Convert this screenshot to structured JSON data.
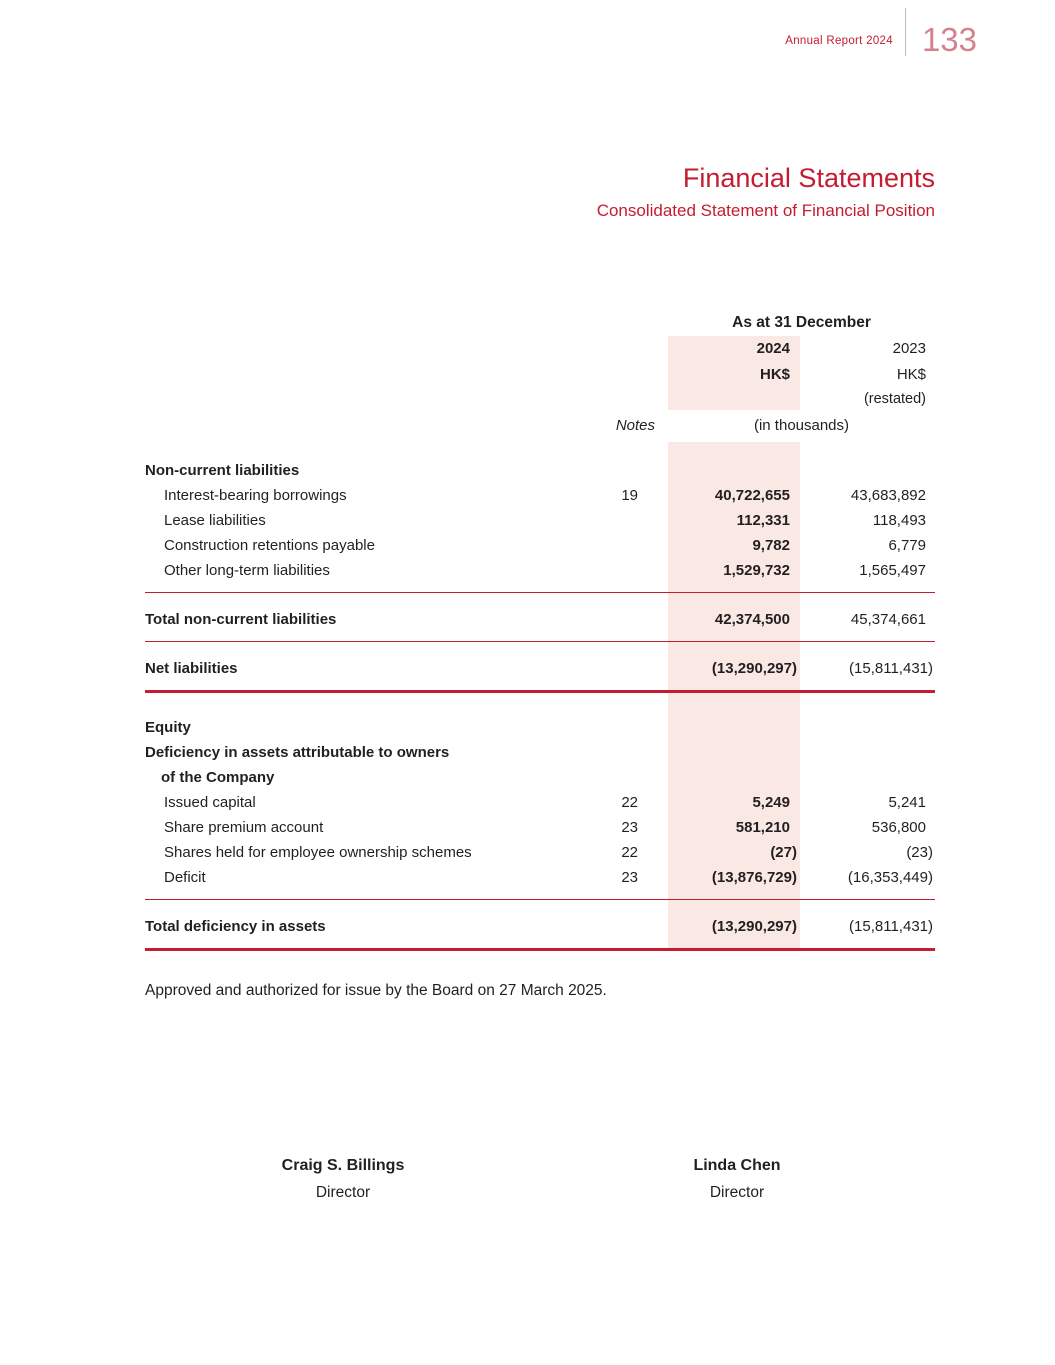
{
  "colors": {
    "accent_red": "#c41c30",
    "page_number_red": "#d4818e",
    "column_shade_pink": "#f9e8e4",
    "text_ink": "#231f20"
  },
  "header": {
    "report_label": "Annual Report 2024",
    "page_number": "133"
  },
  "title": {
    "main": "Financial Statements",
    "subtitle": "Consolidated Statement of Financial Position"
  },
  "table": {
    "period_header": "As at 31 December",
    "columns": {
      "year_2024": "2024",
      "year_2023": "2023",
      "currency_2024": "HK$",
      "currency_2023": "HK$",
      "restated_note": "(restated)",
      "notes_label": "Notes",
      "units_label": "(in thousands)"
    },
    "rows": [
      {
        "type": "heading",
        "label": "Non-current liabilities",
        "note": "",
        "v2024": "",
        "v2023": ""
      },
      {
        "type": "item",
        "label": "Interest-bearing borrowings",
        "note": "19",
        "v2024": "40,722,655",
        "v2023": "43,683,892"
      },
      {
        "type": "item",
        "label": "Lease liabilities",
        "note": "",
        "v2024": "112,331",
        "v2023": "118,493"
      },
      {
        "type": "item",
        "label": "Construction retentions payable",
        "note": "",
        "v2024": "9,782",
        "v2023": "6,779"
      },
      {
        "type": "item",
        "label": "Other long-term liabilities",
        "note": "",
        "v2024": "1,529,732",
        "v2023": "1,565,497"
      },
      {
        "type": "total",
        "label": "Total non-current liabilities",
        "note": "",
        "v2024": "42,374,500",
        "v2023": "45,374,661"
      },
      {
        "type": "total",
        "label": "Net liabilities",
        "note": "",
        "v2024": "(13,290,297)",
        "v2023": "(15,811,431)"
      },
      {
        "type": "heading",
        "label": "Equity",
        "note": "",
        "v2024": "",
        "v2023": ""
      },
      {
        "type": "heading",
        "label": "Deficiency in assets attributable to owners",
        "note": "",
        "v2024": "",
        "v2023": ""
      },
      {
        "type": "heading",
        "label": "of the Company",
        "note": "",
        "v2024": "",
        "v2023": ""
      },
      {
        "type": "item",
        "label": "Issued capital",
        "note": "22",
        "v2024": "5,249",
        "v2023": "5,241"
      },
      {
        "type": "item",
        "label": "Share premium account",
        "note": "23",
        "v2024": "581,210",
        "v2023": "536,800"
      },
      {
        "type": "item",
        "label": "Shares held for employee ownership schemes",
        "note": "22",
        "v2024": "(27)",
        "v2023": "(23)"
      },
      {
        "type": "item",
        "label": "Deficit",
        "note": "23",
        "v2024": "(13,876,729)",
        "v2023": "(16,353,449)"
      },
      {
        "type": "total",
        "label": "Total deficiency in assets",
        "note": "",
        "v2024": "(13,290,297)",
        "v2023": "(15,811,431)"
      }
    ]
  },
  "approval": {
    "text": "Approved and authorized for issue by the Board on 27 March 2025."
  },
  "signatures": [
    {
      "name": "Craig S. Billings",
      "title": "Director"
    },
    {
      "name": "Linda Chen",
      "title": "Director"
    }
  ]
}
